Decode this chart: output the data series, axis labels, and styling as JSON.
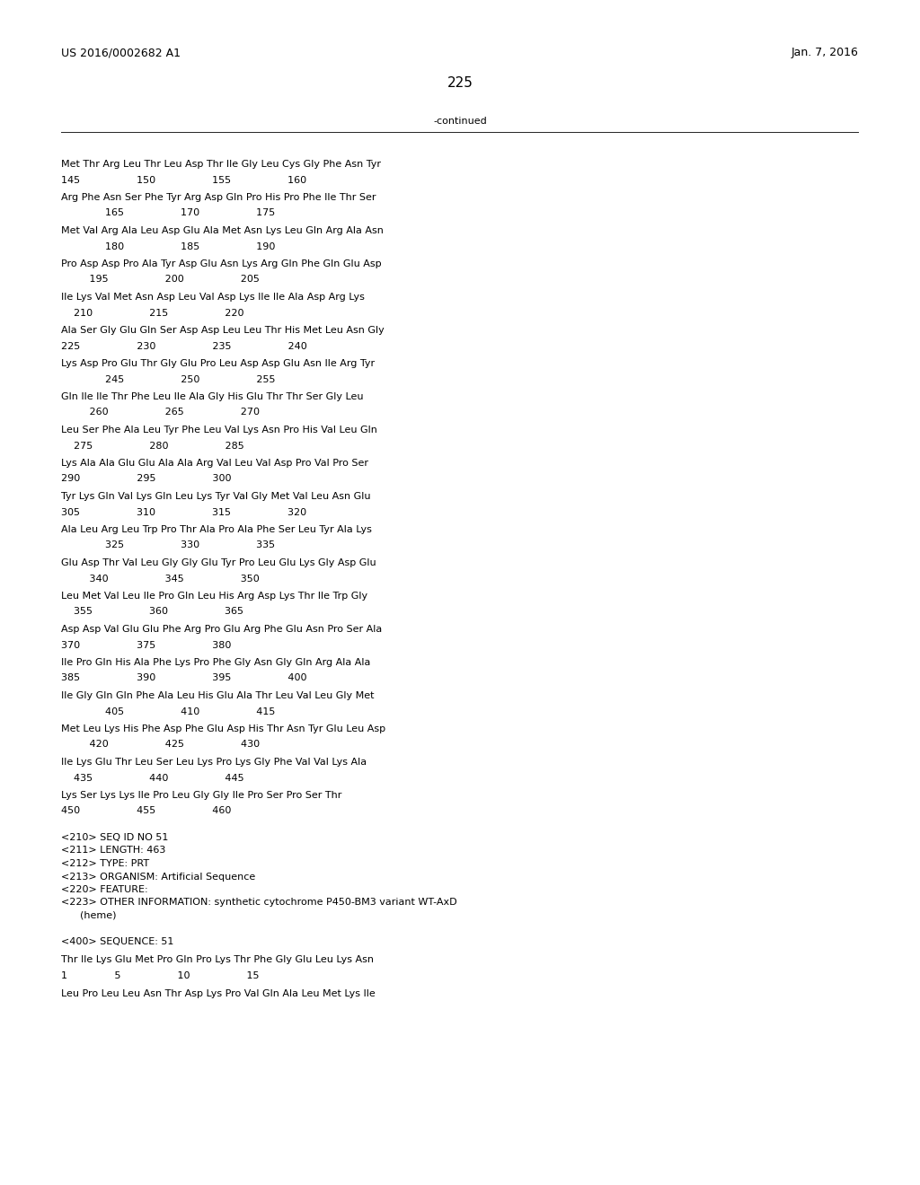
{
  "header_left": "US 2016/0002682 A1",
  "header_right": "Jan. 7, 2016",
  "page_number": "225",
  "continued_text": "-continued",
  "background_color": "#ffffff",
  "text_color": "#000000",
  "font_size": 8.0,
  "header_font_size": 9.0,
  "page_num_font_size": 11.0,
  "seq_blocks": [
    [
      "Met Thr Arg Leu Thr Leu Asp Thr Ile Gly Leu Cys Gly Phe Asn Tyr",
      "145                  150                  155                  160"
    ],
    [
      "Arg Phe Asn Ser Phe Tyr Arg Asp Gln Pro His Pro Phe Ile Thr Ser",
      "              165                  170                  175"
    ],
    [
      "Met Val Arg Ala Leu Asp Glu Ala Met Asn Lys Leu Gln Arg Ala Asn",
      "              180                  185                  190"
    ],
    [
      "Pro Asp Asp Pro Ala Tyr Asp Glu Asn Lys Arg Gln Phe Gln Glu Asp",
      "         195                  200                  205"
    ],
    [
      "Ile Lys Val Met Asn Asp Leu Val Asp Lys Ile Ile Ala Asp Arg Lys",
      "    210                  215                  220"
    ],
    [
      "Ala Ser Gly Glu Gln Ser Asp Asp Leu Leu Thr His Met Leu Asn Gly",
      "225                  230                  235                  240"
    ],
    [
      "Lys Asp Pro Glu Thr Gly Glu Pro Leu Asp Asp Glu Asn Ile Arg Tyr",
      "              245                  250                  255"
    ],
    [
      "Gln Ile Ile Thr Phe Leu Ile Ala Gly His Glu Thr Thr Ser Gly Leu",
      "         260                  265                  270"
    ],
    [
      "Leu Ser Phe Ala Leu Tyr Phe Leu Val Lys Asn Pro His Val Leu Gln",
      "    275                  280                  285"
    ],
    [
      "Lys Ala Ala Glu Glu Ala Ala Arg Val Leu Val Asp Pro Val Pro Ser",
      "290                  295                  300"
    ],
    [
      "Tyr Lys Gln Val Lys Gln Leu Lys Tyr Val Gly Met Val Leu Asn Glu",
      "305                  310                  315                  320"
    ],
    [
      "Ala Leu Arg Leu Trp Pro Thr Ala Pro Ala Phe Ser Leu Tyr Ala Lys",
      "              325                  330                  335"
    ],
    [
      "Glu Asp Thr Val Leu Gly Gly Glu Tyr Pro Leu Glu Lys Gly Asp Glu",
      "         340                  345                  350"
    ],
    [
      "Leu Met Val Leu Ile Pro Gln Leu His Arg Asp Lys Thr Ile Trp Gly",
      "    355                  360                  365"
    ],
    [
      "Asp Asp Val Glu Glu Phe Arg Pro Glu Arg Phe Glu Asn Pro Ser Ala",
      "370                  375                  380"
    ],
    [
      "Ile Pro Gln His Ala Phe Lys Pro Phe Gly Asn Gly Gln Arg Ala Ala",
      "385                  390                  395                  400"
    ],
    [
      "Ile Gly Gln Gln Phe Ala Leu His Glu Ala Thr Leu Val Leu Gly Met",
      "              405                  410                  415"
    ],
    [
      "Met Leu Lys His Phe Asp Phe Glu Asp His Thr Asn Tyr Glu Leu Asp",
      "         420                  425                  430"
    ],
    [
      "Ile Lys Glu Thr Leu Ser Leu Lys Pro Lys Gly Phe Val Val Lys Ala",
      "    435                  440                  445"
    ],
    [
      "Lys Ser Lys Lys Ile Pro Leu Gly Gly Ile Pro Ser Pro Ser Thr",
      "450                  455                  460"
    ]
  ],
  "metadata_lines": [
    "<210> SEQ ID NO 51",
    "<211> LENGTH: 463",
    "<212> TYPE: PRT",
    "<213> ORGANISM: Artificial Sequence",
    "<220> FEATURE:",
    "<223> OTHER INFORMATION: synthetic cytochrome P450-BM3 variant WT-AxD",
    "      (heme)",
    "",
    "<400> SEQUENCE: 51"
  ],
  "seq51_blocks": [
    [
      "Thr Ile Lys Glu Met Pro Gln Pro Lys Thr Phe Gly Glu Leu Lys Asn",
      "1               5                  10                  15"
    ],
    [
      "Leu Pro Leu Leu Asn Thr Asp Lys Pro Val Gln Ala Leu Met Lys Ile",
      ""
    ]
  ]
}
